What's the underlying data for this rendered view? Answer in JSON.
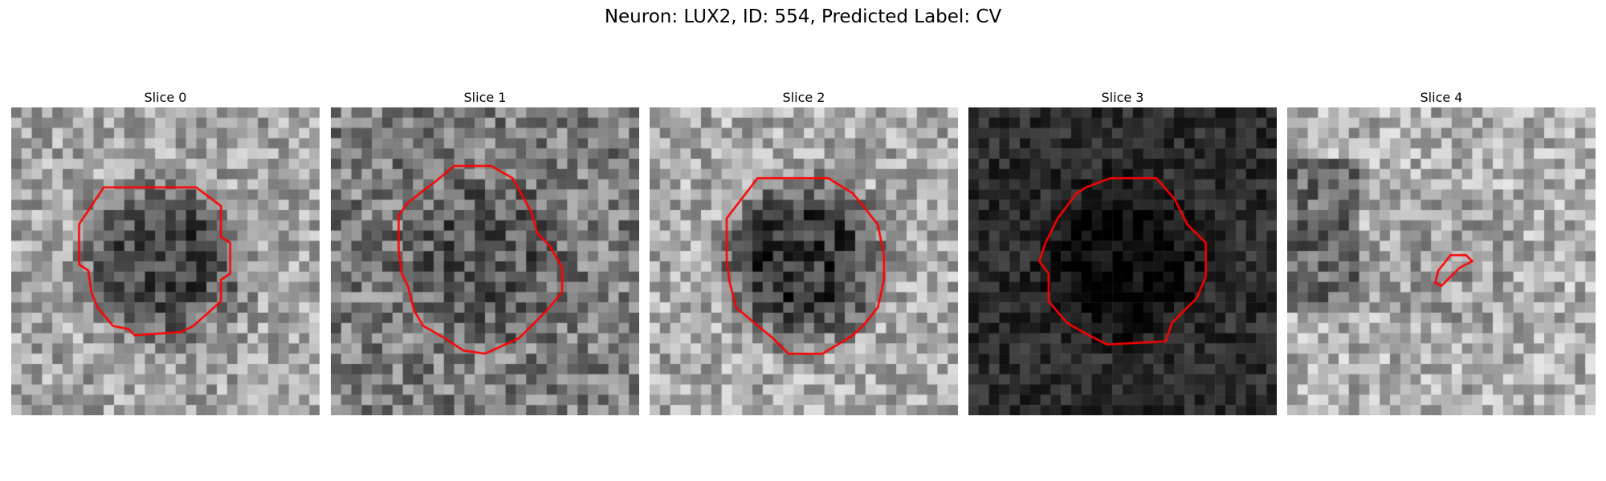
{
  "figure": {
    "title": "Neuron: LUX2, ID: 554, Predicted Label: CV"
  },
  "colors": {
    "background": "#ffffff",
    "contour": "#ff0000",
    "colormap": "gray"
  },
  "slices": [
    {
      "title": "Slice 0",
      "tone": {
        "outer": 165,
        "center": 70,
        "noise": 55
      }
    },
    {
      "title": "Slice 1",
      "tone": {
        "outer": 125,
        "center": 85,
        "noise": 60
      }
    },
    {
      "title": "Slice 2",
      "tone": {
        "outer": 170,
        "center": 55,
        "noise": 55
      }
    },
    {
      "title": "Slice 3",
      "tone": {
        "outer": 45,
        "center": 8,
        "noise": 30
      }
    },
    {
      "title": "Slice 4",
      "tone": {
        "outer": 175,
        "center": 160,
        "noise": 55
      }
    }
  ]
}
